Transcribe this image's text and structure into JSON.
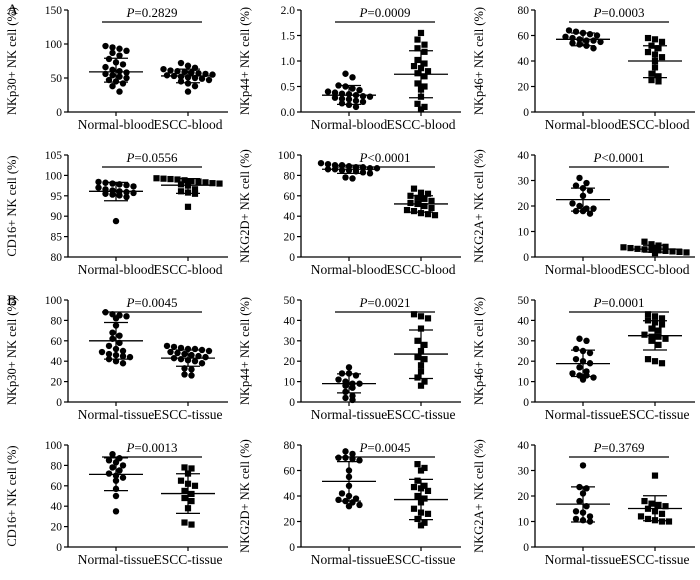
{
  "panels": {
    "a": "A",
    "b": "B"
  },
  "colors": {
    "foreground": "#000000",
    "background": "#ffffff"
  },
  "chart_data": {
    "type": "scatter",
    "layout": {
      "rows": 4,
      "cols": 3,
      "grid": false,
      "legend": "none",
      "error_bars": "mean_sd",
      "significance_line": true
    },
    "plots": [
      {
        "id": "a1-nkp30-blood",
        "panel": "A",
        "ylabel": "NKp30+ NK cell (%)",
        "p_label": "P=0.2829",
        "ylim": [
          0,
          150
        ],
        "yticks": [
          0,
          50,
          100,
          150
        ],
        "ytick_labels": [
          "0",
          "50",
          "100",
          "150"
        ],
        "categories": [
          "Normal-blood",
          "ESCC-blood"
        ],
        "groups": [
          {
            "name": "Normal-blood",
            "marker": "circle",
            "mean": 59,
            "err_low": 44,
            "err_high": 79,
            "values": [
              97,
              95,
              93,
              90,
              87,
              83,
              78,
              73,
              70,
              66,
              62,
              60,
              58,
              56,
              54,
              52,
              50,
              47,
              45,
              42,
              38,
              30
            ]
          },
          {
            "name": "ESCC-blood",
            "marker": "circle",
            "mean": 53,
            "err_low": 43,
            "err_high": 63,
            "values": [
              72,
              68,
              65,
              63,
              61,
              60,
              59,
              58,
              57,
              56,
              55,
              54,
              53,
              52,
              51,
              50,
              49,
              47,
              45,
              42,
              38,
              30
            ]
          }
        ]
      },
      {
        "id": "a2-nkp44-blood",
        "panel": "A",
        "ylabel": "NKp44+ NK cell (%)",
        "p_label": "P=0.0009",
        "ylim": [
          0,
          2.0
        ],
        "yticks": [
          0,
          0.5,
          1.0,
          1.5,
          2.0
        ],
        "ytick_labels": [
          "0.0",
          "0.5",
          "1.0",
          "1.5",
          "2.0"
        ],
        "categories": [
          "Normal-blood",
          "ESCC-blood"
        ],
        "groups": [
          {
            "name": "Normal-blood",
            "marker": "circle",
            "mean": 0.33,
            "err_low": 0.15,
            "err_high": 0.52,
            "values": [
              0.75,
              0.68,
              0.52,
              0.5,
              0.46,
              0.43,
              0.4,
              0.38,
              0.36,
              0.35,
              0.33,
              0.31,
              0.3,
              0.28,
              0.26,
              0.25,
              0.22,
              0.2,
              0.17,
              0.14,
              0.1
            ]
          },
          {
            "name": "ESCC-blood",
            "marker": "square",
            "mean": 0.74,
            "err_low": 0.28,
            "err_high": 1.2,
            "values": [
              1.55,
              1.42,
              1.32,
              1.25,
              1.18,
              1.02,
              0.95,
              0.9,
              0.86,
              0.8,
              0.76,
              0.7,
              0.56,
              0.5,
              0.44,
              0.3,
              0.16,
              0.1,
              0.05
            ]
          }
        ]
      },
      {
        "id": "a3-nkp46-blood",
        "panel": "A",
        "ylabel": "NKp46+ NK cell (%)",
        "p_label": "P=0.0003",
        "ylim": [
          0,
          80
        ],
        "yticks": [
          0,
          20,
          40,
          60,
          80
        ],
        "ytick_labels": [
          "0",
          "20",
          "40",
          "60",
          "80"
        ],
        "categories": [
          "Normal-blood",
          "ESCC-blood"
        ],
        "groups": [
          {
            "name": "Normal-blood",
            "marker": "circle",
            "mean": 57,
            "err_low": 52,
            "err_high": 62,
            "values": [
              64,
              63,
              62,
              61,
              60,
              59,
              58,
              57,
              56,
              56,
              55,
              54,
              53,
              52,
              50
            ]
          },
          {
            "name": "ESCC-blood",
            "marker": "square",
            "mean": 40,
            "err_low": 27,
            "err_high": 52,
            "values": [
              58,
              57,
              55,
              52,
              50,
              47,
              45,
              43,
              40,
              35,
              30,
              28,
              25,
              24
            ]
          }
        ]
      },
      {
        "id": "a4-cd16-blood",
        "panel": "A",
        "ylabel": "CD16+ NK cell (%)",
        "p_label": "P=0.0556",
        "ylim": [
          80,
          105
        ],
        "yticks": [
          80,
          85,
          90,
          95,
          100,
          105
        ],
        "ytick_labels": [
          "80",
          "85",
          "90",
          "95",
          "100",
          "105"
        ],
        "categories": [
          "Normal-blood",
          "ESCC-blood"
        ],
        "groups": [
          {
            "name": "Normal-blood",
            "marker": "circle",
            "mean": 96.1,
            "err_low": 93.8,
            "err_high": 98.3,
            "values": [
              98.4,
              98.2,
              98,
              97.8,
              97.6,
              97.3,
              97,
              96.6,
              96.3,
              96.1,
              95.9,
              95.7,
              95.5,
              95.3,
              95.1,
              94.7,
              88.8
            ]
          },
          {
            "name": "ESCC-blood",
            "marker": "square",
            "mean": 97.6,
            "err_low": 95.6,
            "err_high": 99.2,
            "values": [
              99.3,
              99.2,
              99.1,
              99,
              98.8,
              98.6,
              98.5,
              98.3,
              98.1,
              98,
              97.8,
              97.5,
              96.6,
              96.1,
              95.8,
              95.5,
              92.3
            ]
          }
        ]
      },
      {
        "id": "a5-nkg2d-blood",
        "panel": "A",
        "ylabel": "NKG2D+ NK cell (%)",
        "p_label": "P<0.0001",
        "ylim": [
          0,
          100
        ],
        "yticks": [
          0,
          20,
          40,
          60,
          80,
          100
        ],
        "ytick_labels": [
          "0",
          "20",
          "40",
          "60",
          "80",
          "100"
        ],
        "categories": [
          "Normal-blood",
          "ESCC-blood"
        ],
        "groups": [
          {
            "name": "Normal-blood",
            "marker": "circle",
            "mean": 86,
            "err_low": 82,
            "err_high": 90,
            "values": [
              92,
              91,
              90,
              90,
              89,
              88,
              88,
              87,
              87,
              86,
              86,
              85,
              85,
              84,
              83,
              82,
              78,
              77
            ]
          },
          {
            "name": "ESCC-blood",
            "marker": "square",
            "mean": 52,
            "err_low": 44,
            "err_high": 60,
            "values": [
              67,
              63,
              62,
              60,
              58,
              57,
              55,
              53,
              52,
              50,
              48,
              46,
              45,
              43,
              42,
              41
            ]
          }
        ]
      },
      {
        "id": "a6-nkg2a-blood",
        "panel": "A",
        "ylabel": "NKG2A+ NK cell (%)",
        "p_label": "P<0.0001",
        "ylim": [
          0,
          40
        ],
        "yticks": [
          0,
          10,
          20,
          30,
          40
        ],
        "ytick_labels": [
          "0",
          "10",
          "20",
          "30",
          "40"
        ],
        "categories": [
          "Normal-blood",
          "ESCC-blood"
        ],
        "groups": [
          {
            "name": "Normal-blood",
            "marker": "circle",
            "mean": 22.5,
            "err_low": 18,
            "err_high": 27,
            "values": [
              31,
              29,
              28,
              27,
              26,
              24,
              21,
              20,
              19,
              19,
              18,
              18,
              17
            ]
          },
          {
            "name": "ESCC-blood",
            "marker": "square",
            "mean": 3.1,
            "err_low": 1.9,
            "err_high": 4.6,
            "values": [
              6,
              5,
              4.5,
              4,
              3.8,
              3.5,
              3.2,
              3,
              2.8,
              2.6,
              2.4,
              2.2,
              2,
              1.8,
              1.5
            ]
          }
        ]
      },
      {
        "id": "b1-nkp30-tissue",
        "panel": "B",
        "ylabel": "NKp30+ NK cell (%)",
        "p_label": "P=0.0045",
        "ylim": [
          0,
          100
        ],
        "yticks": [
          0,
          20,
          40,
          60,
          80,
          100
        ],
        "ytick_labels": [
          "0",
          "20",
          "40",
          "60",
          "80",
          "100"
        ],
        "categories": [
          "Normal-tissue",
          "ESCC-tissue"
        ],
        "groups": [
          {
            "name": "Normal-tissue",
            "marker": "circle",
            "mean": 60,
            "err_low": 42,
            "err_high": 78,
            "values": [
              88,
              86,
              85,
              84,
              82,
              75,
              68,
              65,
              62,
              58,
              55,
              52,
              50,
              49,
              47,
              46,
              45,
              44,
              42,
              40,
              38
            ]
          },
          {
            "name": "ESCC-tissue",
            "marker": "circle",
            "mean": 43,
            "err_low": 35,
            "err_high": 51,
            "values": [
              55,
              54,
              53,
              52,
              52,
              51,
              50,
              49,
              48,
              47,
              46,
              45,
              44,
              43,
              42,
              41,
              40,
              38,
              33,
              32,
              27,
              26
            ]
          }
        ]
      },
      {
        "id": "b2-nkp44-tissue",
        "panel": "B",
        "ylabel": "NKp44+ NK cell (%)",
        "p_label": "P=0.0021",
        "ylim": [
          0,
          50
        ],
        "yticks": [
          0,
          10,
          20,
          30,
          40,
          50
        ],
        "ytick_labels": [
          "0",
          "10",
          "20",
          "30",
          "40",
          "50"
        ],
        "categories": [
          "Normal-tissue",
          "ESCC-tissue"
        ],
        "groups": [
          {
            "name": "Normal-tissue",
            "marker": "circle",
            "mean": 9,
            "err_low": 4.5,
            "err_high": 13.8,
            "values": [
              17,
              14,
              14,
              13,
              11,
              10,
              9,
              9,
              8,
              7,
              5,
              3,
              2,
              1
            ]
          },
          {
            "name": "ESCC-tissue",
            "marker": "square",
            "mean": 23.5,
            "err_low": 11.5,
            "err_high": 35.3,
            "values": [
              43,
              42,
              41,
              36,
              30,
              28,
              25,
              22,
              21,
              18,
              15,
              12,
              10,
              8
            ]
          }
        ]
      },
      {
        "id": "b3-nkp46-tissue",
        "panel": "B",
        "ylabel": "NKp46+ NK cell (%)",
        "p_label": "P=0.0001",
        "ylim": [
          0,
          50
        ],
        "yticks": [
          0,
          10,
          20,
          30,
          40,
          50
        ],
        "ytick_labels": [
          "0",
          "10",
          "20",
          "30",
          "40",
          "50"
        ],
        "categories": [
          "Normal-tissue",
          "ESCC-tissue"
        ],
        "groups": [
          {
            "name": "Normal-tissue",
            "marker": "circle",
            "mean": 18.8,
            "err_low": 12.5,
            "err_high": 25.4,
            "values": [
              31,
              30,
              26,
              25,
              24,
              21,
              20,
              19,
              17,
              15,
              14,
              13,
              13,
              12,
              11
            ]
          },
          {
            "name": "ESCC-tissue",
            "marker": "square",
            "mean": 32.5,
            "err_low": 25.5,
            "err_high": 39.8,
            "values": [
              43,
              42,
              41,
              40,
              39,
              38,
              36,
              35,
              33,
              32,
              32,
              31,
              30,
              28,
              21,
              20,
              19
            ]
          }
        ]
      },
      {
        "id": "b4-cd16-tissue",
        "panel": "B",
        "ylabel": "CD16+ NK cell (%)",
        "p_label": "P=0.0013",
        "ylim": [
          0,
          100
        ],
        "yticks": [
          0,
          20,
          40,
          60,
          80,
          100
        ],
        "ytick_labels": [
          "0",
          "20",
          "40",
          "60",
          "80",
          "100"
        ],
        "categories": [
          "Normal-tissue",
          "ESCC-tissue"
        ],
        "groups": [
          {
            "name": "Normal-tissue",
            "marker": "circle",
            "mean": 71.2,
            "err_low": 55.3,
            "err_high": 87.4,
            "values": [
              91,
              87,
              85,
              83,
              80,
              78,
              75,
              72,
              70,
              68,
              65,
              57,
              50,
              35
            ]
          },
          {
            "name": "ESCC-tissue",
            "marker": "square",
            "mean": 52.4,
            "err_low": 33,
            "err_high": 71.8,
            "values": [
              78,
              77,
              72,
              65,
              62,
              60,
              55,
              52,
              48,
              45,
              38,
              24,
              22
            ]
          }
        ]
      },
      {
        "id": "b5-nkg2d-tissue",
        "panel": "B",
        "ylabel": "NKG2D+ NK cell (%)",
        "p_label": "P=0.0045",
        "ylim": [
          0,
          80
        ],
        "yticks": [
          0,
          20,
          40,
          60,
          80
        ],
        "ytick_labels": [
          "0",
          "20",
          "40",
          "60",
          "80"
        ],
        "categories": [
          "Normal-tissue",
          "ESCC-tissue"
        ],
        "groups": [
          {
            "name": "Normal-tissue",
            "marker": "circle",
            "mean": 51.5,
            "err_low": 36,
            "err_high": 67,
            "values": [
              75,
              73,
              70,
              70,
              69,
              68,
              60,
              55,
              48,
              42,
              40,
              38,
              37,
              36,
              35,
              33,
              32
            ]
          },
          {
            "name": "ESCC-tissue",
            "marker": "square",
            "mean": 37.2,
            "err_low": 21.5,
            "err_high": 53,
            "values": [
              65,
              62,
              60,
              52,
              48,
              47,
              46,
              44,
              40,
              38,
              35,
              30,
              27,
              26,
              22,
              19,
              17
            ]
          }
        ]
      },
      {
        "id": "b6-nkg2a-tissue",
        "panel": "B",
        "ylabel": "NKG2A+ NK cell (%)",
        "p_label": "P=0.3769",
        "ylim": [
          0,
          40
        ],
        "yticks": [
          0,
          10,
          20,
          30,
          40
        ],
        "ytick_labels": [
          "0",
          "10",
          "20",
          "30",
          "40"
        ],
        "categories": [
          "Normal-tissue",
          "ESCC-tissue"
        ],
        "groups": [
          {
            "name": "Normal-tissue",
            "marker": "circle",
            "mean": 16.8,
            "err_low": 9.8,
            "err_high": 23.6,
            "values": [
              32,
              23.5,
              23,
              21,
              18,
              16,
              14,
              13.5,
              12,
              11,
              10.5,
              10
            ]
          },
          {
            "name": "ESCC-tissue",
            "marker": "square",
            "mean": 15.1,
            "err_low": 10.3,
            "err_high": 20.1,
            "values": [
              28,
              18,
              17,
              16.5,
              16,
              15,
              14,
              13,
              12,
              11,
              10.5,
              10,
              10
            ]
          }
        ]
      }
    ]
  }
}
